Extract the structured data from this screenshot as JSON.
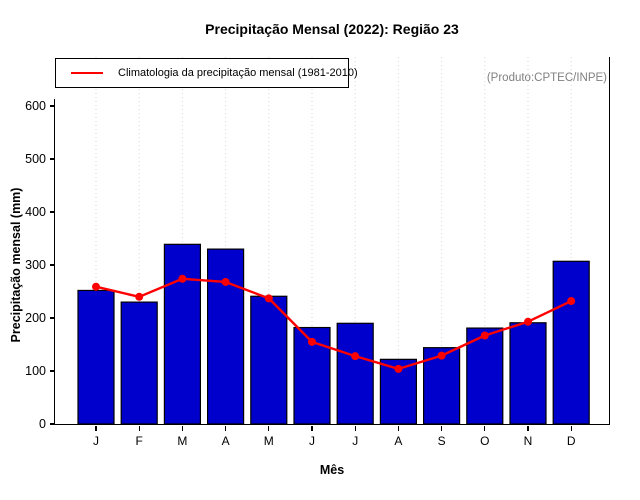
{
  "title": "Precipitação Mensal (2022): Região 23",
  "annotation": "(Produto:CPTEC/INPE)",
  "chart_data": {
    "type": "bar",
    "title": "Precipitação Mensal (2022): Região 23",
    "xlabel": "Mês",
    "ylabel": "Precipitação mensal (mm)",
    "categories": [
      "J",
      "F",
      "M",
      "A",
      "M",
      "J",
      "J",
      "A",
      "S",
      "O",
      "N",
      "D"
    ],
    "series": [
      {
        "name": "Precipitação mensal (2022)",
        "type": "bar",
        "color": "#0000CD",
        "values": [
          252,
          230,
          339,
          330,
          241,
          182,
          190,
          122,
          144,
          181,
          191,
          307
        ]
      },
      {
        "name": "Climatologia da precipitação mensal (1981-2010)",
        "type": "line",
        "color": "#FF0000",
        "values": [
          259,
          240,
          274,
          268,
          237,
          155,
          128,
          104,
          129,
          167,
          193,
          232
        ]
      }
    ],
    "ylim": [
      0,
      692
    ],
    "yticks": [
      0,
      100,
      200,
      300,
      400,
      500,
      600
    ],
    "grid": "vertical-dotted",
    "legend_position": "top-left",
    "annotation": "(Produto:CPTEC/INPE)",
    "colors": {
      "bar_fill": "#0000CD",
      "bar_border": "#000000",
      "line": "#FF0000",
      "grid": "#D9D9D9",
      "annotation_text": "#808080"
    }
  }
}
